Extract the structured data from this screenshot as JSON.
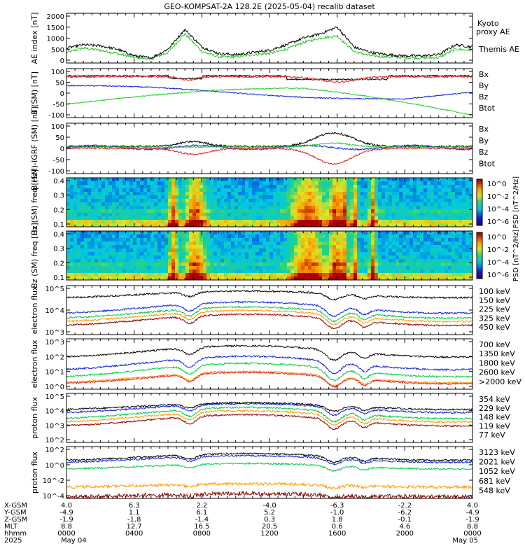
{
  "title": "GEO-KOMPSAT-2A 128.2E (2025-05-04) recalib dataset",
  "colors": {
    "black": "#000000",
    "green": "#22cc22",
    "red": "#dd2222",
    "blue": "#1020dd",
    "orange": "#ff9900",
    "darkred": "#8b0000",
    "brightgreen": "#00cc44"
  },
  "chart_data": [
    {
      "type": "line",
      "panel": "ae",
      "ylabel": "AE index [nT]",
      "yticks": [
        "2000",
        "1500",
        "1000",
        "500",
        "0"
      ],
      "ylim": [
        0,
        2000
      ],
      "series": [
        {
          "name": "Kyoto proxy AE",
          "color": "#22cc22"
        },
        {
          "name": "Themis AE",
          "color": "#000000"
        }
      ],
      "x_hours": [
        0,
        1,
        2,
        3,
        4,
        5,
        6,
        7,
        8,
        9,
        10,
        11,
        12,
        13,
        14,
        15,
        16,
        17,
        18,
        19,
        20,
        21,
        22,
        23,
        24
      ],
      "values_kyoto": [
        350,
        550,
        450,
        300,
        120,
        60,
        350,
        1200,
        400,
        150,
        150,
        250,
        300,
        500,
        800,
        1000,
        1100,
        400,
        200,
        150,
        120,
        100,
        120,
        500,
        450
      ],
      "values_themis": [
        550,
        700,
        650,
        500,
        200,
        100,
        500,
        1400,
        600,
        300,
        250,
        350,
        450,
        700,
        1000,
        1200,
        1500,
        600,
        350,
        250,
        200,
        200,
        250,
        700,
        600
      ]
    },
    {
      "type": "line",
      "panel": "bfield",
      "ylabel": "B (SM) [nT]",
      "yticks": [
        "100",
        "50",
        "0",
        "-50",
        "-100"
      ],
      "ylim": [
        -120,
        125
      ],
      "series": [
        {
          "name": "Bx",
          "color": "#1020dd"
        },
        {
          "name": "By",
          "color": "#22cc22"
        },
        {
          "name": "Bz",
          "color": "#dd2222"
        },
        {
          "name": "Btot",
          "color": "#000000"
        }
      ]
    },
    {
      "type": "line",
      "panel": "bdiff",
      "ylabel": "B (SM)-IGRF (SM) [nT]",
      "yticks": [
        "100",
        "50",
        "0",
        "-50",
        "-100"
      ],
      "ylim": [
        -120,
        110
      ],
      "series": [
        {
          "name": "Bx",
          "color": "#1020dd"
        },
        {
          "name": "By",
          "color": "#22cc22"
        },
        {
          "name": "Bz",
          "color": "#dd2222"
        },
        {
          "name": "Btot",
          "color": "#000000"
        }
      ]
    },
    {
      "type": "heatmap",
      "panel": "specx",
      "ylabel": "Bx (SM) freq [Hz]",
      "yticks": [
        "0.4",
        "0.3",
        "0.2",
        "0.1"
      ],
      "colorbar_label": "PSD [nT^2/Hz]",
      "colorbar_ticks": [
        "10^0",
        "10^-2",
        "10^-4",
        "10^-6"
      ]
    },
    {
      "type": "heatmap",
      "panel": "specz",
      "ylabel": "Bz (SM) freq [Hz]",
      "yticks": [
        "0.4",
        "0.3",
        "0.2",
        "0.1"
      ],
      "colorbar_label": "PSD [nT^2/Hz]",
      "colorbar_ticks": [
        "10^0",
        "10^-2",
        "10^-4",
        "10^-6"
      ]
    },
    {
      "type": "line",
      "panel": "elo",
      "ylabel": "electron flux",
      "yticks": [
        "10^5",
        "10^4",
        "10^3"
      ],
      "series": [
        {
          "name": "100 keV",
          "color": "#000000"
        },
        {
          "name": "150 keV",
          "color": "#1020dd"
        },
        {
          "name": "225 keV",
          "color": "#00cc44"
        },
        {
          "name": "325 keV",
          "color": "#ff9900"
        },
        {
          "name": "450 keV",
          "color": "#8b0000"
        }
      ]
    },
    {
      "type": "line",
      "panel": "ehi",
      "ylabel": "electron flux",
      "yticks": [
        "10^3",
        "10^2",
        "10^1",
        "10^0"
      ],
      "series": [
        {
          "name": "700 keV",
          "color": "#000000"
        },
        {
          "name": "1350 keV",
          "color": "#1020dd"
        },
        {
          "name": "1800 keV",
          "color": "#00cc44"
        },
        {
          "name": "2600 keV",
          "color": "#ff9900"
        },
        {
          "name": ">2000 keV",
          "color": "#dd2222"
        }
      ]
    },
    {
      "type": "line",
      "panel": "plo",
      "ylabel": "proton flux",
      "yticks": [
        "10^5",
        "10^4",
        "10^3",
        "10^2"
      ],
      "series": [
        {
          "name": "354 keV",
          "color": "#8b0000"
        },
        {
          "name": "229 keV",
          "color": "#ff9900"
        },
        {
          "name": "148 keV",
          "color": "#00cc44"
        },
        {
          "name": "119 keV",
          "color": "#1020dd"
        },
        {
          "name": "77 keV",
          "color": "#000000"
        }
      ]
    },
    {
      "type": "line",
      "panel": "phi",
      "ylabel": "proton flux",
      "yticks": [
        "10^2",
        "10^0",
        "10^-2",
        "10^-4"
      ],
      "series": [
        {
          "name": "3123 keV",
          "color": "#8b0000"
        },
        {
          "name": "2021 keV",
          "color": "#ff9900"
        },
        {
          "name": "1052 keV",
          "color": "#00cc44"
        },
        {
          "name": "681 keV",
          "color": "#1020dd"
        },
        {
          "name": "548 keV",
          "color": "#000000"
        }
      ]
    }
  ],
  "ephemeris": {
    "row_labels": [
      "X-GSM",
      "Y-GSM",
      "Z-GSM",
      "MLT",
      "hhmm",
      "2025"
    ],
    "columns": [
      [
        "4.0",
        "-4.9",
        "-1.9",
        "8.8",
        "0000",
        "May 04"
      ],
      [
        "6.3",
        "1.1",
        "-1.8",
        "12.7",
        "0400",
        ""
      ],
      [
        "2.2",
        "6.1",
        "-1.4",
        "16.5",
        "0800",
        ""
      ],
      [
        "-4.0",
        "5.2",
        "0.3",
        "20.5",
        "1200",
        ""
      ],
      [
        "-6.3",
        "-1.0",
        "1.8",
        "0.6",
        "1600",
        ""
      ],
      [
        "-2.2",
        "-6.2",
        "-0.1",
        "4.6",
        "2000",
        ""
      ],
      [
        "4.0",
        "-4.9",
        "-1.9",
        "8.8",
        "0000",
        "May 05"
      ]
    ]
  }
}
